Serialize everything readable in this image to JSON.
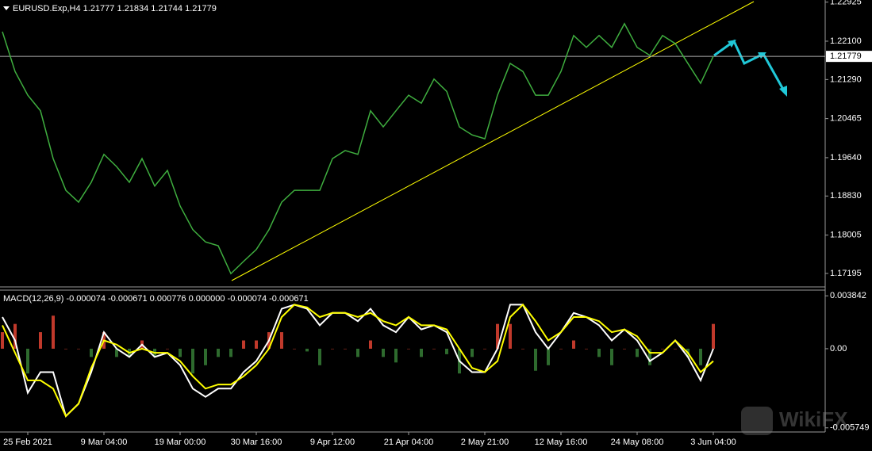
{
  "chart_data": [
    {
      "type": "line",
      "title": "EURUSD.Exp,H4  1.21777 1.21834 1.21744 1.21779",
      "values": [
        1.223,
        1.2146,
        1.2096,
        1.2063,
        1.1962,
        1.1895,
        1.187,
        1.1912,
        1.1971,
        1.1945,
        1.1912,
        1.1962,
        1.1904,
        1.1937,
        1.1862,
        1.1812,
        1.1786,
        1.1778,
        1.1719,
        1.1745,
        1.177,
        1.1812,
        1.187,
        1.1895,
        1.1895,
        1.1895,
        1.1962,
        1.1979,
        1.1971,
        1.2063,
        1.2029,
        1.2063,
        1.2096,
        1.2079,
        1.213,
        1.2104,
        1.2029,
        1.2012,
        1.2004,
        1.2096,
        1.2163,
        1.2146,
        1.2096,
        1.2096,
        1.2146,
        1.2222,
        1.2197,
        1.2222,
        1.2197,
        1.2247,
        1.2197,
        1.218,
        1.2222,
        1.2205,
        1.2163,
        1.2121,
        1.2178
      ],
      "color": "#3fae3f",
      "current_price": {
        "value": 1.21779,
        "label": "1.21779"
      },
      "ylim": [
        1.1691,
        1.2297
      ],
      "yticks": [
        {
          "value": 1.22925,
          "label": "1.22925"
        },
        {
          "value": 1.221,
          "label": "1.22100"
        },
        {
          "value": 1.2129,
          "label": "1.21290"
        },
        {
          "value": 1.20465,
          "label": "1.20465"
        },
        {
          "value": 1.1964,
          "label": "1.19640"
        },
        {
          "value": 1.1883,
          "label": "1.18830"
        },
        {
          "value": 1.18005,
          "label": "1.18005"
        },
        {
          "value": 1.17195,
          "label": "1.17195"
        }
      ]
    },
    {
      "type": "macd",
      "title": "MACD(12,26,9) -0.000074 -0.000671 0.000776 0.000000 -0.000074 -0.000671",
      "categories": [
        null,
        null,
        "25 Feb 2021",
        null,
        null,
        null,
        null,
        null,
        "9 Mar 04:00",
        null,
        null,
        null,
        null,
        null,
        "19 Mar 00:00",
        null,
        null,
        null,
        null,
        null,
        "30 Mar 16:00",
        null,
        null,
        null,
        null,
        null,
        "9 Apr 12:00",
        null,
        null,
        null,
        null,
        null,
        "21 Apr 04:00",
        null,
        null,
        null,
        null,
        null,
        "2 May 21:00",
        null,
        null,
        null,
        null,
        null,
        "12 May 16:00",
        null,
        null,
        null,
        null,
        null,
        "24 May 08:00",
        null,
        null,
        null,
        null,
        null,
        "3 Jun 04:00"
      ],
      "histogram_values": [
        0.0012,
        0.0018,
        -0.0018,
        0.0012,
        0.0024,
        0,
        0,
        -0.0006,
        0.0012,
        -0.0006,
        -0.0006,
        0.0006,
        -0.0006,
        0,
        -0.0006,
        -0.0018,
        -0.0012,
        -0.0006,
        -0.0006,
        0.0006,
        0.0006,
        0.0012,
        0.0012,
        0,
        -0.0002,
        -0.0012,
        0,
        0,
        -0.0006,
        0.0006,
        -0.0006,
        -0.001,
        0,
        -0.0006,
        0,
        -0.0004,
        -0.0018,
        -0.0006,
        0,
        0.0018,
        0.0018,
        0,
        -0.0016,
        -0.0012,
        0,
        0.0006,
        0,
        -0.0006,
        -0.0012,
        0,
        -0.0006,
        -0.0012,
        0,
        0,
        -0.0006,
        -0.0012,
        0.0018
      ],
      "macd_values": [
        0.0023,
        0.0006,
        -0.0032,
        -0.0017,
        -0.0017,
        -0.0049,
        -0.004,
        -0.0017,
        0.0012,
        0,
        -0.0006,
        0.0003,
        -0.0006,
        -0.0003,
        -0.0012,
        -0.0029,
        -0.0035,
        -0.0029,
        -0.0029,
        -0.0017,
        -0.0009,
        0.0006,
        0.0029,
        0.0032,
        0.0029,
        0.0017,
        0.0026,
        0.0026,
        0.002,
        0.0029,
        0.0017,
        0.0012,
        0.0023,
        0.0014,
        0.0017,
        0.0012,
        -0.0009,
        -0.0017,
        -0.0017,
        0,
        0.0032,
        0.0032,
        0.0012,
        0,
        0.0012,
        0.0026,
        0.0023,
        0.0017,
        0.0006,
        0.0014,
        0.0006,
        -0.0009,
        -0.0003,
        0.0006,
        -0.0006,
        -0.0023,
        0
      ],
      "signal_values": [
        0.0017,
        -0.0003,
        -0.0023,
        -0.0023,
        -0.0029,
        -0.0049,
        -0.004,
        -0.0014,
        0.0006,
        0.0003,
        -0.0003,
        0,
        -0.0003,
        -0.0003,
        -0.0009,
        -0.002,
        -0.0029,
        -0.0026,
        -0.0026,
        -0.002,
        -0.0012,
        0,
        0.0023,
        0.0032,
        0.003,
        0.0023,
        0.0026,
        0.0026,
        0.0023,
        0.0026,
        0.002,
        0.0017,
        0.0023,
        0.0017,
        0.0017,
        0.0014,
        0,
        -0.0014,
        -0.0017,
        -0.0009,
        0.0023,
        0.0032,
        0.002,
        0.0006,
        0.0012,
        0.0023,
        0.0023,
        0.002,
        0.0012,
        0.0014,
        0.0009,
        -0.0003,
        -0.0003,
        0.0006,
        -0.0003,
        -0.0017,
        -0.0009
      ],
      "histogram_up_color": "#c0392b",
      "histogram_down_color": "#2e6b2e",
      "macd_color": "#ffffff",
      "signal_color": "#ffff00",
      "ylim": [
        -0.00605,
        0.0042
      ],
      "yticks": [
        0.003842,
        {
          "value": 0,
          "label": "0.00"
        },
        -0.005749
      ]
    }
  ],
  "watermark": "WikiFX"
}
